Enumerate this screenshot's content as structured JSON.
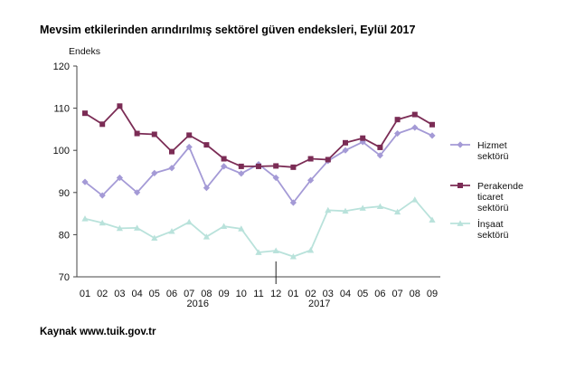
{
  "header": {
    "title": "Mevsim etkilerinden arındırılmış sektörel güven endeksleri, Eylül 2017"
  },
  "footer": {
    "source": "Kaynak www.tuik.gov.tr"
  },
  "chart_data": {
    "type": "line",
    "title": "Mevsim etkilerinden arındırılmış sektörel güven endeksleri, Eylül 2017",
    "ylabel": "Endeks",
    "xlabel": "",
    "ylim": [
      70,
      120
    ],
    "yticks": [
      70,
      80,
      90,
      100,
      110,
      120
    ],
    "categories": [
      "01",
      "02",
      "03",
      "04",
      "05",
      "06",
      "07",
      "08",
      "09",
      "10",
      "11",
      "12",
      "01",
      "02",
      "03",
      "04",
      "05",
      "06",
      "07",
      "08",
      "09"
    ],
    "x_tick_labels": [
      "01",
      "02",
      "03",
      "04",
      "05",
      "06",
      "07",
      "08",
      "09",
      "10",
      "11",
      "12",
      "01",
      "02",
      "03",
      "04",
      "05",
      "06",
      "07",
      "08",
      "09"
    ],
    "year_labels": [
      {
        "label": "2016",
        "at_index": 6.5
      },
      {
        "label": "2017",
        "at_index": 13.5
      }
    ],
    "year_separator_after_index": 11,
    "legend_position": "right",
    "series": [
      {
        "name": "Hizmet sektörü",
        "legend_lines": [
          "Hizmet",
          "sektörü"
        ],
        "color": "#a49ad6",
        "marker": "diamond",
        "values": [
          92.5,
          89.3,
          93.5,
          90.0,
          94.6,
          95.8,
          100.8,
          91.1,
          96.2,
          94.5,
          96.7,
          93.5,
          87.6,
          92.9,
          97.5,
          100.0,
          102.0,
          98.8,
          104.0,
          105.4,
          103.5
        ]
      },
      {
        "name": "Perakende ticaret sektörü",
        "legend_lines": [
          "Perakende",
          "ticaret",
          "sektörü"
        ],
        "color": "#7b2c55",
        "marker": "square",
        "values": [
          108.8,
          106.2,
          110.5,
          104.0,
          103.8,
          99.7,
          103.6,
          101.3,
          98.0,
          96.2,
          96.2,
          96.3,
          96.0,
          98.0,
          97.8,
          101.8,
          102.9,
          100.7,
          107.3,
          108.5,
          106.1
        ]
      },
      {
        "name": "İnşaat sektörü",
        "legend_lines": [
          "İnşaat",
          "sektörü"
        ],
        "color": "#b9e2db",
        "marker": "triangle",
        "values": [
          83.8,
          82.8,
          81.5,
          81.6,
          79.2,
          80.8,
          83.0,
          79.5,
          82.0,
          81.4,
          75.8,
          76.2,
          74.8,
          76.3,
          85.8,
          85.6,
          86.3,
          86.7,
          85.4,
          88.3,
          83.5
        ]
      }
    ]
  }
}
